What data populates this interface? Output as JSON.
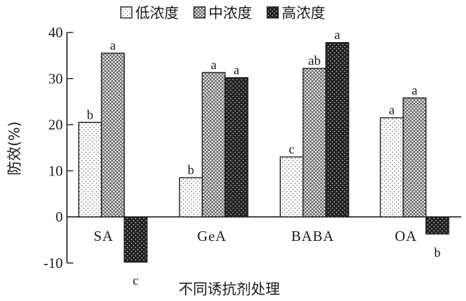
{
  "chart_data": {
    "type": "bar",
    "title": "",
    "xlabel": "不同诱抗剂处理",
    "ylabel": "防效(%)",
    "ylim": [
      -10,
      40
    ],
    "yticks": [
      -10,
      0,
      10,
      20,
      30,
      40
    ],
    "grid": false,
    "legend_position": "top",
    "categories": [
      "SA",
      "GeA",
      "BABA",
      "OA"
    ],
    "series": [
      {
        "name": "低浓度",
        "pattern": "sparse-dots",
        "values": [
          20.5,
          8.5,
          13,
          21.5
        ],
        "labels": [
          "b",
          "b",
          "c",
          "a"
        ]
      },
      {
        "name": "中浓度",
        "pattern": "cross-hatch",
        "values": [
          35.5,
          31.3,
          32.2,
          25.8
        ],
        "labels": [
          "a",
          "a",
          "ab",
          "a"
        ]
      },
      {
        "name": "高浓度",
        "pattern": "dark-dots",
        "values": [
          -9.8,
          30.2,
          37.8,
          -3.7
        ],
        "labels": [
          "c",
          "a",
          "a",
          "b"
        ]
      }
    ]
  }
}
